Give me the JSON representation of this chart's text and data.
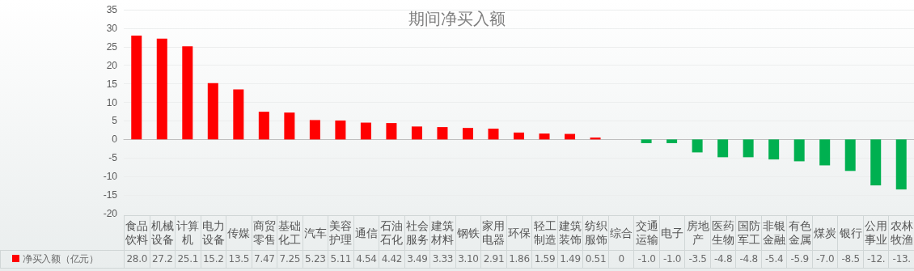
{
  "chart_data": {
    "type": "bar",
    "title": "期间净买入额",
    "categories": [
      "食品饮料",
      "机械设备",
      "计算机",
      "电力设备",
      "传媒",
      "商贸零售",
      "基础化工",
      "汽车",
      "美容护理",
      "通信",
      "石油石化",
      "社会服务",
      "建筑材料",
      "钢铁",
      "家用电器",
      "环保",
      "轻工制造",
      "建筑装饰",
      "纺织服饰",
      "综合",
      "交通运输",
      "电子",
      "房地产",
      "医药生物",
      "国防军工",
      "非银金融",
      "有色金属",
      "煤炭",
      "银行",
      "公用事业",
      "农林牧渔"
    ],
    "series": [
      {
        "name": "净买入额（亿元）",
        "color": "#ff0000",
        "values": [
          28.0,
          27.2,
          25.1,
          15.2,
          13.5,
          7.47,
          7.25,
          5.23,
          5.11,
          4.54,
          4.42,
          3.49,
          3.33,
          3.1,
          2.91,
          1.86,
          1.59,
          1.49,
          0.51,
          0,
          -1.0,
          -1.0,
          -3.5,
          -4.8,
          -4.8,
          -5.4,
          -5.9,
          -7.0,
          -8.5,
          -12.4,
          -13.5
        ],
        "colors": [
          "#ff0000",
          "#ff0000",
          "#ff0000",
          "#ff0000",
          "#ff0000",
          "#ff0000",
          "#ff0000",
          "#ff0000",
          "#ff0000",
          "#ff0000",
          "#ff0000",
          "#ff0000",
          "#ff0000",
          "#ff0000",
          "#ff0000",
          "#ff0000",
          "#ff0000",
          "#ff0000",
          "#ff0000",
          "#ff0000",
          "#00b050",
          "#00b050",
          "#00b050",
          "#00b050",
          "#00b050",
          "#00b050",
          "#00b050",
          "#00b050",
          "#00b050",
          "#00b050",
          "#00b050"
        ],
        "value_labels": [
          "28.0",
          "27.2",
          "25.1",
          "15.2",
          "13.5",
          "7.47",
          "7.25",
          "5.23",
          "5.11",
          "4.54",
          "4.42",
          "3.49",
          "3.33",
          "3.10",
          "2.91",
          "1.86",
          "1.59",
          "1.49",
          "0.51",
          "0",
          "-1.0",
          "-1.0",
          "-3.5",
          "-4.8",
          "-4.8",
          "-5.4",
          "-5.9",
          "-7.0",
          "-8.5",
          "-12.",
          "-13."
        ]
      }
    ],
    "ylim": [
      -20,
      35
    ],
    "yticks": [
      -20,
      -15,
      -10,
      -5,
      0,
      5,
      10,
      15,
      20,
      25,
      30,
      35
    ],
    "grid": "y"
  }
}
